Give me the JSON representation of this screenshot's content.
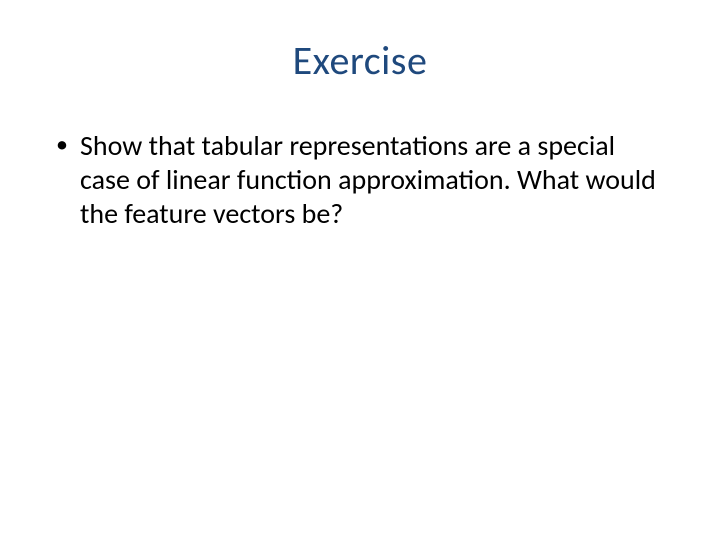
{
  "slide": {
    "title": "Exercise",
    "title_color": "#1f497d",
    "title_fontsize": 40,
    "body_color": "#000000",
    "body_fontsize": 28,
    "background_color": "#ffffff",
    "bullets": [
      "Show that tabular representations are a special case of linear function approximation. What would the feature vectors be?"
    ]
  }
}
